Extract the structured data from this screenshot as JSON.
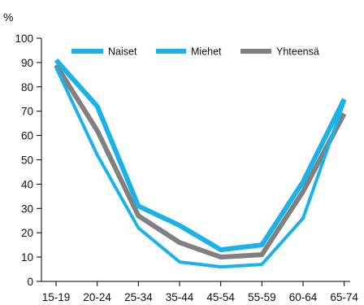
{
  "chart_data": {
    "type": "line",
    "ylabel": "%",
    "ylim": [
      0,
      100
    ],
    "yticks": [
      0,
      10,
      20,
      30,
      40,
      50,
      60,
      70,
      80,
      90,
      100
    ],
    "grid": false,
    "legend_position": "top",
    "categories": [
      "15-19",
      "20-24",
      "25-34",
      "35-44",
      "45-54",
      "55-59",
      "60-64",
      "65-74"
    ],
    "series": [
      {
        "name": "Naiset",
        "color": "#1ab2e8",
        "values": [
          91,
          72,
          31,
          23,
          13,
          15,
          41,
          75
        ]
      },
      {
        "name": "Miehet",
        "color": "#1ab2e8",
        "values": [
          88,
          52,
          22,
          8,
          6,
          7,
          26,
          74
        ]
      },
      {
        "name": "Yhteensä",
        "color": "#808080",
        "values": [
          89,
          62,
          27,
          16,
          10,
          11,
          37,
          69
        ]
      }
    ]
  }
}
